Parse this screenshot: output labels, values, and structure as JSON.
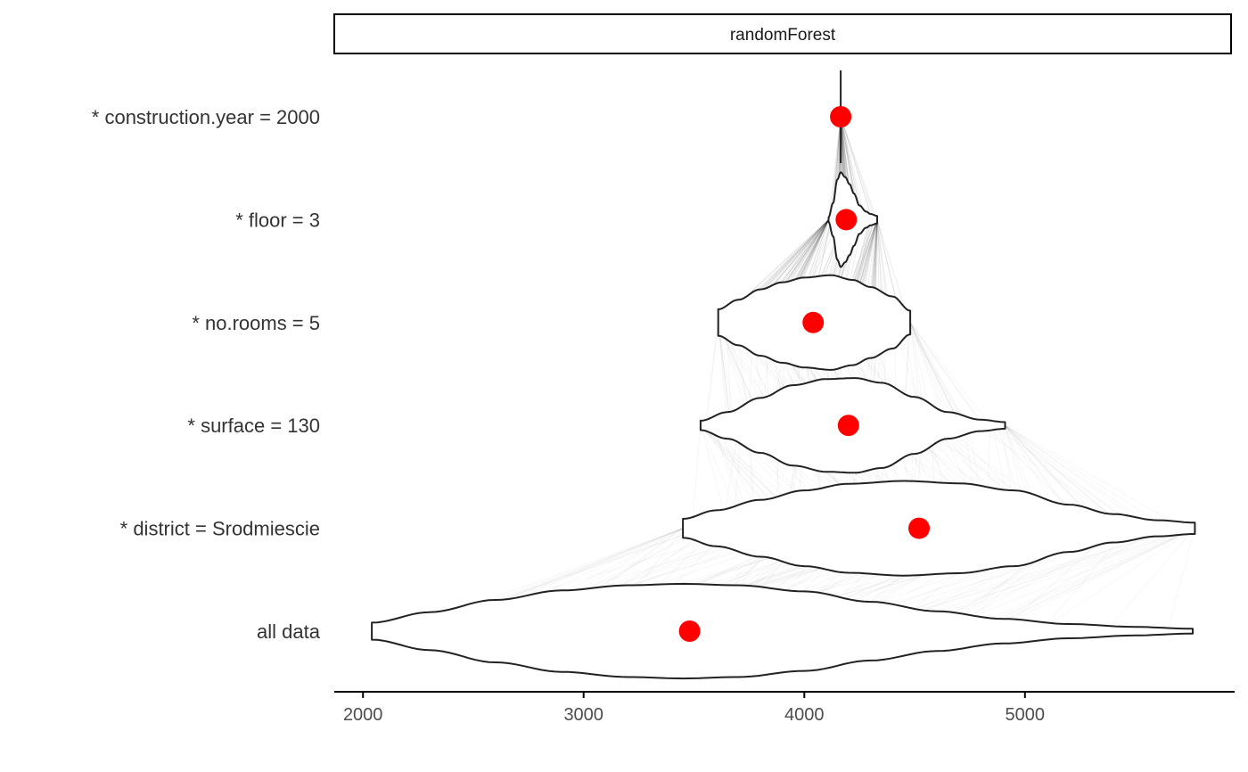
{
  "chart_data": {
    "type": "violin",
    "panel": "randomForest",
    "xlim": [
      1870,
      5950
    ],
    "xticks": [
      2000,
      3000,
      4000,
      5000
    ],
    "grid": false,
    "legend": "none",
    "colors": {
      "point": "#ff0000",
      "violin_stroke": "#222222",
      "path": "#000000"
    },
    "rows": [
      {
        "label": "* construction.year = 2000",
        "point": 4165,
        "min": 4165,
        "max": 4165,
        "density": [
          [
            4165,
            1.0
          ]
        ]
      },
      {
        "label": "* floor = 3",
        "point": 4190,
        "min": 4110,
        "max": 4330,
        "density": [
          [
            4110,
            0.05
          ],
          [
            4130,
            0.35
          ],
          [
            4150,
            0.85
          ],
          [
            4165,
            1.0
          ],
          [
            4185,
            0.9
          ],
          [
            4205,
            0.75
          ],
          [
            4225,
            0.55
          ],
          [
            4250,
            0.3
          ],
          [
            4280,
            0.17
          ],
          [
            4300,
            0.12
          ],
          [
            4330,
            0.08
          ]
        ]
      },
      {
        "label": "* no.rooms = 5",
        "point": 4040,
        "min": 3610,
        "max": 4480,
        "density": [
          [
            3610,
            0.28
          ],
          [
            3700,
            0.48
          ],
          [
            3800,
            0.7
          ],
          [
            3900,
            0.85
          ],
          [
            4000,
            0.95
          ],
          [
            4120,
            1.0
          ],
          [
            4220,
            0.9
          ],
          [
            4300,
            0.75
          ],
          [
            4400,
            0.55
          ],
          [
            4480,
            0.25
          ]
        ]
      },
      {
        "label": "* surface = 130",
        "point": 4200,
        "min": 3530,
        "max": 4910,
        "density": [
          [
            3530,
            0.1
          ],
          [
            3650,
            0.28
          ],
          [
            3800,
            0.58
          ],
          [
            3950,
            0.85
          ],
          [
            4100,
            0.98
          ],
          [
            4230,
            1.0
          ],
          [
            4350,
            0.9
          ],
          [
            4500,
            0.6
          ],
          [
            4650,
            0.28
          ],
          [
            4800,
            0.12
          ],
          [
            4910,
            0.07
          ]
        ]
      },
      {
        "label": "* district = Srodmiescie",
        "point": 4520,
        "min": 3450,
        "max": 5770,
        "density": [
          [
            3450,
            0.2
          ],
          [
            3600,
            0.38
          ],
          [
            3800,
            0.6
          ],
          [
            4000,
            0.8
          ],
          [
            4200,
            0.94
          ],
          [
            4450,
            1.0
          ],
          [
            4700,
            0.95
          ],
          [
            4950,
            0.8
          ],
          [
            5200,
            0.5
          ],
          [
            5400,
            0.3
          ],
          [
            5600,
            0.17
          ],
          [
            5770,
            0.12
          ]
        ]
      },
      {
        "label": "all data",
        "point": 3480,
        "min": 2040,
        "max": 5760,
        "density": [
          [
            2040,
            0.18
          ],
          [
            2300,
            0.4
          ],
          [
            2600,
            0.66
          ],
          [
            2900,
            0.86
          ],
          [
            3200,
            0.97
          ],
          [
            3450,
            1.0
          ],
          [
            3700,
            0.97
          ],
          [
            4000,
            0.84
          ],
          [
            4300,
            0.62
          ],
          [
            4600,
            0.42
          ],
          [
            4900,
            0.26
          ],
          [
            5200,
            0.15
          ],
          [
            5500,
            0.09
          ],
          [
            5760,
            0.05
          ]
        ]
      }
    ]
  }
}
